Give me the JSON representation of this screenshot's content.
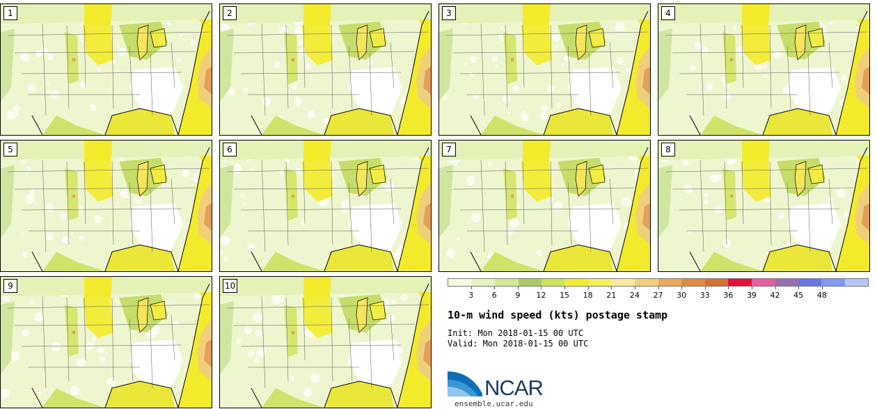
{
  "panels": [
    "1",
    "2",
    "3",
    "4",
    "5",
    "6",
    "7",
    "8",
    "9",
    "10"
  ],
  "chart_data": {
    "type": "heatmap",
    "title": "10-m wind speed (kts) postage stamp",
    "init": "Init: Mon 2018-01-15 00 UTC",
    "valid": "Valid: Mon 2018-01-15 00 UTC",
    "colorbar": {
      "ticks": [
        "3",
        "6",
        "9",
        "12",
        "15",
        "18",
        "21",
        "24",
        "27",
        "30",
        "33",
        "36",
        "39",
        "42",
        "45",
        "48"
      ],
      "colors": [
        "#f7fbe3",
        "#e8f4bf",
        "#d2e897",
        "#a9cb6a",
        "#cde35a",
        "#f2ee2e",
        "#f7f05a",
        "#fae8a6",
        "#f5cf7c",
        "#e9a95e",
        "#df8c45",
        "#d37236",
        "#e4103a",
        "#e85d9c",
        "#9a6fae",
        "#6b76e8",
        "#7f9af0",
        "#b5c8f5"
      ]
    },
    "members": 10
  },
  "logo": {
    "text": "NCAR",
    "url": "ensemble.ucar.edu"
  }
}
